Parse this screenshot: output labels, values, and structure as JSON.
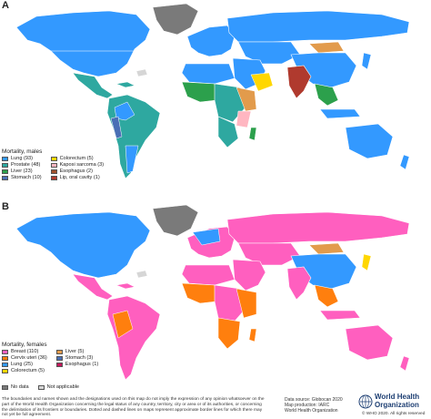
{
  "colors": {
    "ocean": "#ffffff",
    "border": "#ffffff",
    "no_data": "#7a7a7a",
    "not_applicable": "#d6d6d6",
    "lung": "#3399ff",
    "prostate": "#2ea8a0",
    "liver": "#2ca04c",
    "stomach": "#4a6fb5",
    "colorectum": "#ffd700",
    "kaposi": "#ffb6c1",
    "esophagus": "#a0522d",
    "lip_oral": "#b03a2e",
    "breast": "#ff5fbf",
    "cervix": "#ff7f0e",
    "liver_f": "#e29b4c",
    "esophagus_f": "#c2185b"
  },
  "panel_a": {
    "letter": "A",
    "legend_title": "Mortality, males",
    "legend_items": [
      {
        "label": "Lung (93)",
        "color": "#3399ff"
      },
      {
        "label": "Prostate (48)",
        "color": "#2ea8a0"
      },
      {
        "label": "Liver (23)",
        "color": "#2ca04c"
      },
      {
        "label": "Stomach (10)",
        "color": "#4a6fb5"
      },
      {
        "label": "Colorectum (5)",
        "color": "#ffd700"
      },
      {
        "label": "Kaposi sarcoma (3)",
        "color": "#ffb6c1"
      },
      {
        "label": "Esophagus (2)",
        "color": "#a0522d"
      },
      {
        "label": "Lip, oral cavity (1)",
        "color": "#b03a2e"
      }
    ]
  },
  "panel_b": {
    "letter": "B",
    "legend_title": "Mortality, females",
    "legend_items": [
      {
        "label": "Breast (110)",
        "color": "#ff5fbf"
      },
      {
        "label": "Cervix uteri (36)",
        "color": "#ff7f0e"
      },
      {
        "label": "Lung (25)",
        "color": "#3399ff"
      },
      {
        "label": "Colorectum (5)",
        "color": "#ffd700"
      },
      {
        "label": "Liver (5)",
        "color": "#e29b4c"
      },
      {
        "label": "Stomach (3)",
        "color": "#4a6fb5"
      },
      {
        "label": "Esophagus (1)",
        "color": "#c2185b"
      }
    ]
  },
  "no_data_label": "No data",
  "not_applicable_label": "Not applicable",
  "disclaimer": "The boundaries and names shown and the designations used on this map do not imply the expression of any opinion whatsoever on the part of the World Health Organization concerning the legal status of any country, territory, city or area or of its authorities, or concerning the delimitation of its frontiers or boundaries. Dotted and dashed lines on maps represent approximate border lines for which there may not yet be full agreement.",
  "source_lines": [
    "Data source: Globocan 2020",
    "Map production: IARC",
    "World Health Organization"
  ],
  "who_name_lines": [
    "World Health",
    "Organization"
  ],
  "copyright": "© WHO 2020. All rights reserved"
}
